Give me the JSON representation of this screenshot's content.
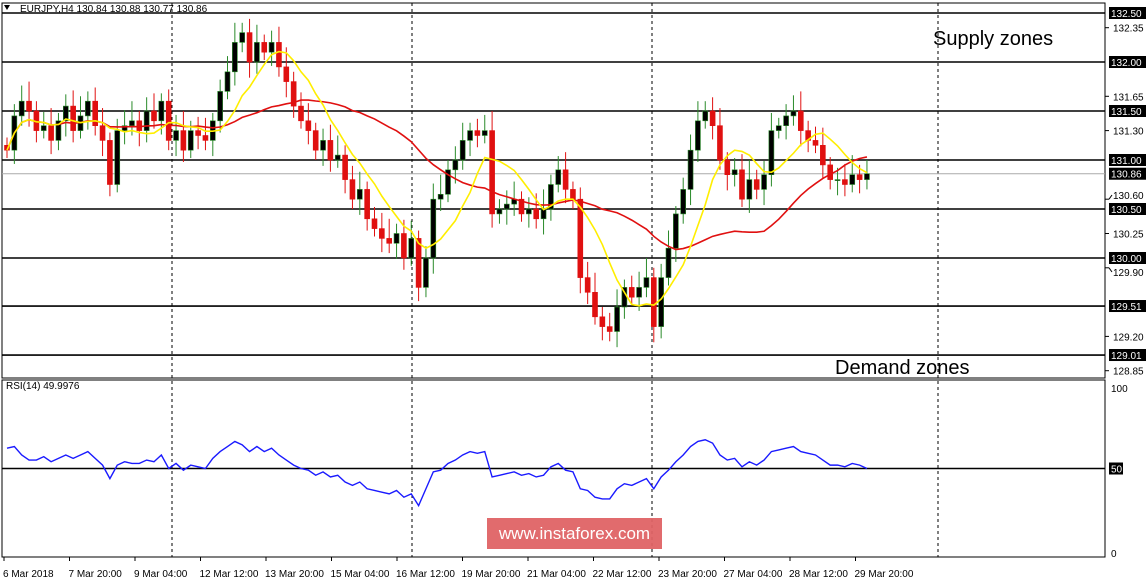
{
  "header": {
    "title": "EURJPY,H4  130.84 130.88 130.77 130.86"
  },
  "annotations": {
    "supply": "Supply zones",
    "demand": "Demand zones"
  },
  "watermark": "www.instaforex.com",
  "chart_data": {
    "type": "candlestick",
    "symbol": "EURJPY",
    "timeframe": "H4",
    "ylim": [
      128.78,
      132.62
    ],
    "price_ticks": [
      "132.35",
      "131.65",
      "131.30",
      "130.60",
      "130.25",
      "129.90",
      "129.20",
      "128.85"
    ],
    "levels": [
      {
        "v": 132.5,
        "l": "132.50"
      },
      {
        "v": 132.0,
        "l": "132.00"
      },
      {
        "v": 131.5,
        "l": "131.50"
      },
      {
        "v": 131.0,
        "l": "131.00"
      },
      {
        "v": 130.5,
        "l": "130.50"
      },
      {
        "v": 130.0,
        "l": "130.00"
      },
      {
        "v": 129.51,
        "l": "129.51"
      },
      {
        "v": 129.01,
        "l": "129.01"
      }
    ],
    "current": {
      "v": 130.86,
      "l": "130.86"
    },
    "ma_fast_period": 8,
    "ma_slow_period": 26,
    "colors": {
      "up": "#000000",
      "down": "#e01010",
      "fast": "#ffee00",
      "slow": "#e01010",
      "rsi": "#1a1aff"
    },
    "closes": [
      131.1,
      131.45,
      131.6,
      131.5,
      131.3,
      131.35,
      131.2,
      131.4,
      131.55,
      131.3,
      131.45,
      131.6,
      131.35,
      131.2,
      130.75,
      131.3,
      131.35,
      131.4,
      131.3,
      131.5,
      131.4,
      131.6,
      131.2,
      131.3,
      131.1,
      131.3,
      131.25,
      131.2,
      131.4,
      131.7,
      131.9,
      132.2,
      132.3,
      132.0,
      132.2,
      132.1,
      132.2,
      131.95,
      131.8,
      131.55,
      131.4,
      131.3,
      131.1,
      131.2,
      131.0,
      131.05,
      130.8,
      130.6,
      130.7,
      130.4,
      130.3,
      130.2,
      130.15,
      130.25,
      130.0,
      130.2,
      129.7,
      130.0,
      130.6,
      130.65,
      130.9,
      131.0,
      131.2,
      131.3,
      131.25,
      131.3,
      130.45,
      130.5,
      130.55,
      130.6,
      130.45,
      130.5,
      130.4,
      130.5,
      130.75,
      130.9,
      130.7,
      130.6,
      129.8,
      129.65,
      129.4,
      129.3,
      129.25,
      129.5,
      129.7,
      129.6,
      129.7,
      129.8,
      129.3,
      129.8,
      130.1,
      130.45,
      130.7,
      131.1,
      131.4,
      131.5,
      131.35,
      131.0,
      130.85,
      130.9,
      130.6,
      130.8,
      130.7,
      130.85,
      131.3,
      131.35,
      131.45,
      131.5,
      131.3,
      131.2,
      131.15,
      130.95,
      130.8,
      130.8,
      130.75,
      130.85,
      130.8,
      130.86
    ],
    "rsi": {
      "label": "RSI(14) 49.9976",
      "ticks": [
        "100",
        "50",
        "0"
      ],
      "level": 50,
      "values": [
        62,
        63,
        58,
        55,
        55,
        57,
        54,
        56,
        58,
        56,
        58,
        60,
        56,
        52,
        44,
        52,
        54,
        53,
        53,
        55,
        54,
        58,
        50,
        53,
        49,
        52,
        51,
        50,
        56,
        60,
        63,
        66,
        64,
        60,
        63,
        60,
        62,
        58,
        55,
        52,
        50,
        49,
        46,
        48,
        45,
        46,
        42,
        40,
        42,
        38,
        37,
        36,
        35,
        37,
        33,
        35,
        28,
        38,
        48,
        49,
        53,
        55,
        58,
        60,
        59,
        60,
        45,
        46,
        47,
        48,
        46,
        47,
        45,
        46,
        51,
        53,
        49,
        48,
        38,
        37,
        33,
        32,
        32,
        38,
        41,
        40,
        42,
        44,
        38,
        45,
        49,
        54,
        58,
        63,
        66,
        67,
        65,
        58,
        55,
        56,
        51,
        54,
        52,
        55,
        60,
        61,
        62,
        63,
        60,
        59,
        58,
        55,
        52,
        52,
        51,
        53,
        52,
        50
      ]
    },
    "time_labels": [
      "6 Mar 2018",
      "7 Mar 20:00",
      "9 Mar 04:00",
      "12 Mar 12:00",
      "13 Mar 20:00",
      "15 Mar 04:00",
      "16 Mar 12:00",
      "19 Mar 20:00",
      "21 Mar 04:00",
      "22 Mar 12:00",
      "23 Mar 20:00",
      "27 Mar 04:00",
      "28 Mar 12:00",
      "29 Mar 20:00"
    ]
  }
}
